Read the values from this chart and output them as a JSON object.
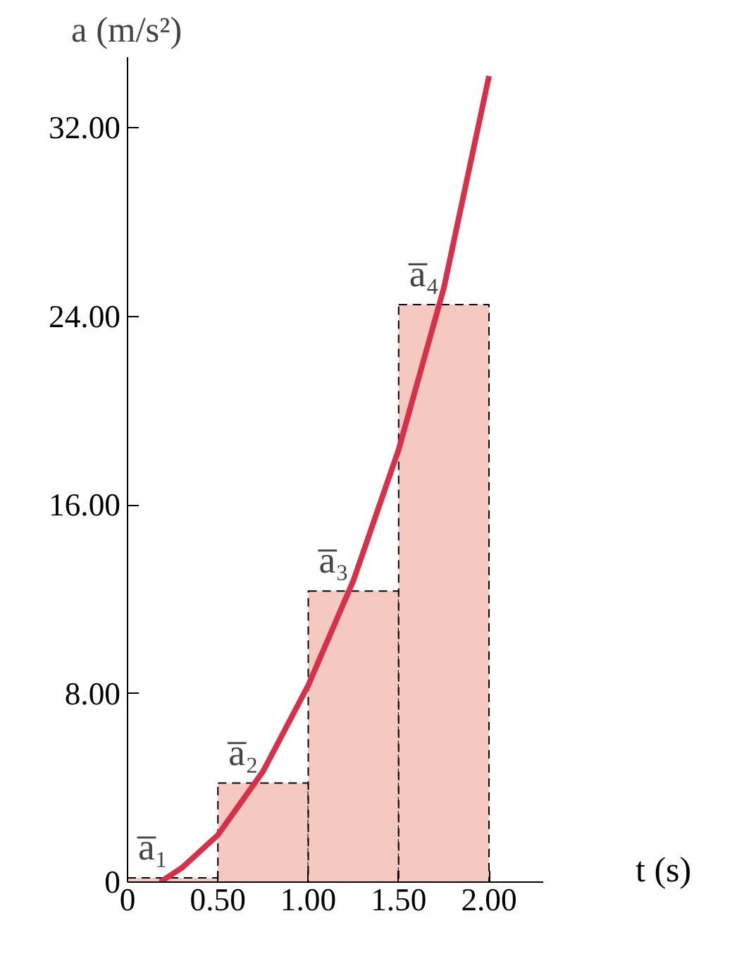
{
  "chart_data": {
    "type": "histogram",
    "xlabel": "t (s)",
    "ylabel": "a (m/s²)",
    "bins": [
      0,
      0.5,
      1.0,
      1.5,
      2.0
    ],
    "values": [
      0.18,
      4.2,
      12.35,
      24.5
    ],
    "color": "#f6c9c0",
    "series": [
      {
        "type": "line",
        "color": "#d9304a",
        "x": [
          0.18,
          0.3,
          0.5,
          0.75,
          1.0,
          1.25,
          1.5,
          1.75,
          2.0
        ],
        "values": [
          0,
          0.6,
          2.0,
          4.7,
          8.35,
          12.8,
          18.35,
          25.2,
          34.2
        ]
      }
    ],
    "xlim": [
      0,
      2.3
    ],
    "ylim": [
      0,
      35
    ],
    "xticks": [
      0,
      {
        "value": 0.5,
        "label": "0.50"
      },
      {
        "value": 1.0,
        "label": "1.00"
      },
      {
        "value": 1.5,
        "label": "1.50"
      },
      {
        "value": 2.0,
        "label": "2.00"
      }
    ],
    "yticks": [
      0,
      {
        "value": 8,
        "label": "8.00"
      },
      {
        "value": 16,
        "label": "16.00"
      },
      {
        "value": 24,
        "label": "24.00"
      },
      {
        "value": 32,
        "label": "32.00"
      }
    ],
    "grid": false,
    "annotations": [
      {
        "text": "a̅₁",
        "x": 0.25,
        "y": 0.18
      },
      {
        "text": "a̅₂",
        "x": 0.75,
        "y": 4.2
      },
      {
        "text": "a̅₃",
        "x": 1.25,
        "y": 12.35
      },
      {
        "text": "a̅₄",
        "x": 1.75,
        "y": 24.5
      }
    ]
  }
}
